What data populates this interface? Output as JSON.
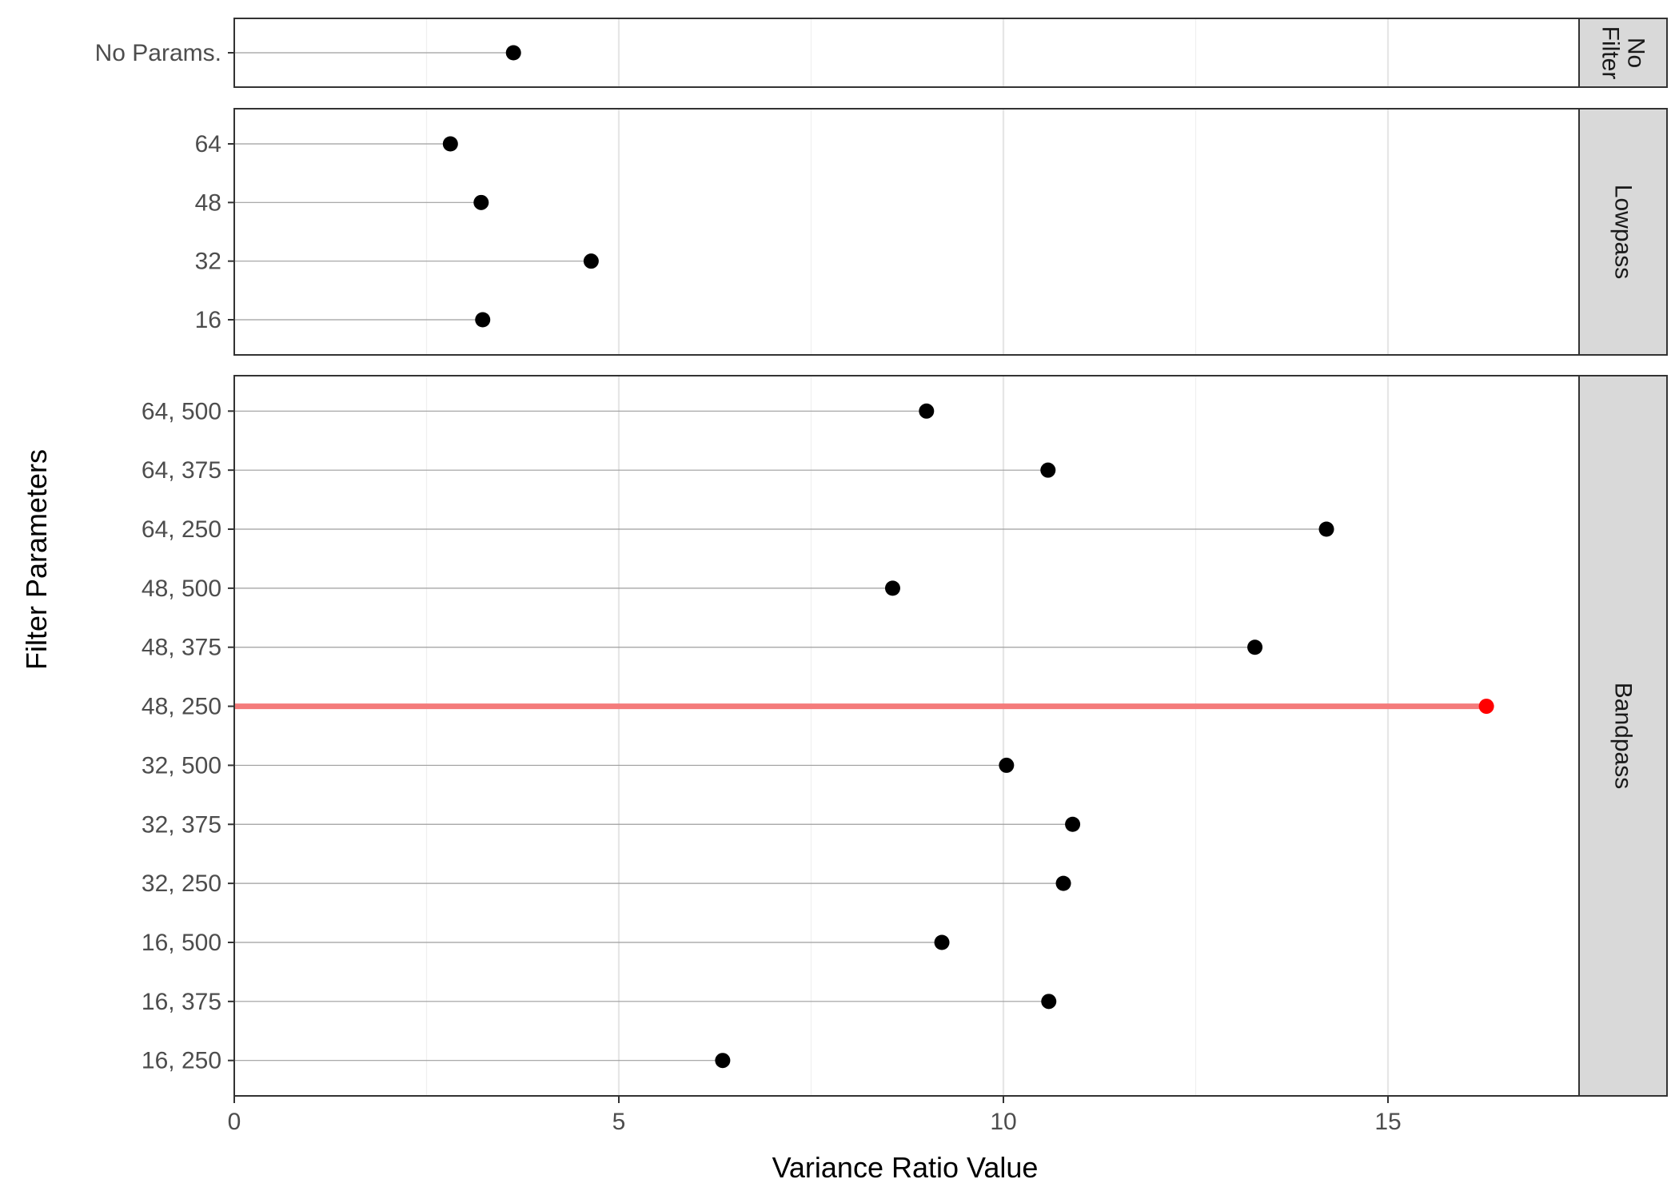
{
  "chart_data": {
    "type": "lollipop",
    "xlabel": "Variance Ratio Value",
    "ylabel": "Filter Parameters",
    "xlim": [
      0,
      18.7
    ],
    "x_ticks": [
      0,
      5,
      10,
      15
    ],
    "grid": true,
    "highlight_color": "#ff0000",
    "highlight_line_color": "#f47b7b",
    "point_color": "#000000",
    "panels": [
      {
        "strip_label": "No Filter",
        "strip_lines": [
          "No",
          "Filter"
        ],
        "categories": [
          "No Params."
        ],
        "values": [
          3.63
        ],
        "highlight": [
          false
        ]
      },
      {
        "strip_label": "Lowpass",
        "strip_lines": [
          "Lowpass"
        ],
        "categories": [
          "64",
          "48",
          "32",
          "16"
        ],
        "values": [
          2.81,
          3.21,
          4.64,
          3.23
        ],
        "highlight": [
          false,
          false,
          false,
          false
        ]
      },
      {
        "strip_label": "Bandpass",
        "strip_lines": [
          "Bandpass"
        ],
        "categories": [
          "64, 500",
          "64, 375",
          "64, 250",
          "48, 500",
          "48, 375",
          "48, 250",
          "32, 500",
          "32, 375",
          "32, 250",
          "16, 500",
          "16, 375",
          "16, 250"
        ],
        "values": [
          9.0,
          10.58,
          14.2,
          8.56,
          13.27,
          16.28,
          10.04,
          10.9,
          10.78,
          9.2,
          10.59,
          6.35
        ],
        "highlight": [
          false,
          false,
          false,
          false,
          false,
          true,
          false,
          false,
          false,
          false,
          false,
          false
        ]
      }
    ]
  }
}
